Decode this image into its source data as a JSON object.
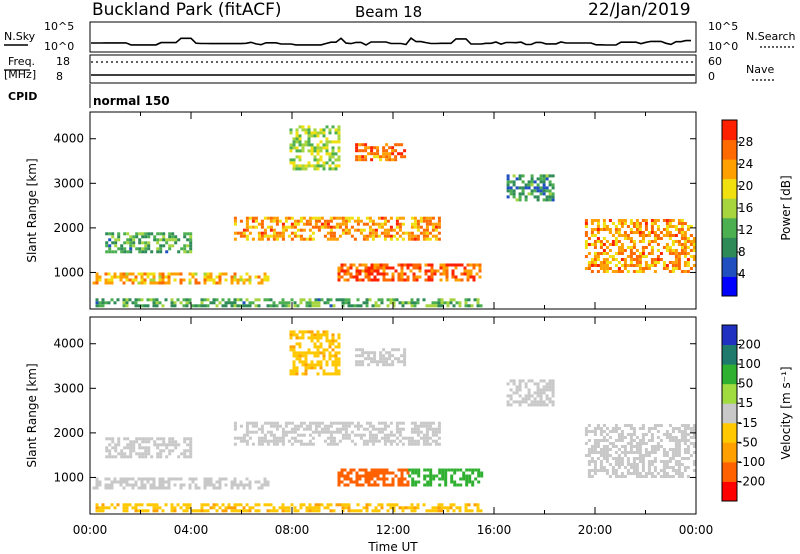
{
  "header": {
    "station": "Buckland Park (fitACF)",
    "beam": "Beam 18",
    "date": "22/Jan/2019"
  },
  "status_panels": {
    "nsky_label": "N.Sky",
    "nsearch_label": "N.Search",
    "noise_ticks": [
      "10^5",
      "10^0"
    ],
    "freq_label_line1": "Freq.",
    "freq_label_line2": "[MHz]",
    "freq_ticks": [
      "18",
      "8"
    ],
    "nave_label": "Nave",
    "nave_ticks": [
      "60",
      "0"
    ],
    "cpid_label": "CPID",
    "cpid_value": "normal 150"
  },
  "colors": {
    "power_scale": [
      "#0000ff",
      "#2050c0",
      "#2e8b57",
      "#4caf50",
      "#a6d53e",
      "#f0e010",
      "#ffa000",
      "#ff6a00",
      "#ff2000"
    ],
    "velocity_scale": [
      "#ff0000",
      "#ff6000",
      "#ffa000",
      "#ffc800",
      "#c8c8c8",
      "#a0dc40",
      "#30b030",
      "#1f7a6e",
      "#2030c0"
    ],
    "ground_scatter": "#c8c8c8"
  },
  "chart_data": [
    {
      "type": "heatmap",
      "title": "Power",
      "xlabel": "Time UT",
      "ylabel": "Slant Range [km]",
      "x_ticks": [
        "00:00",
        "04:00",
        "08:00",
        "12:00",
        "16:00",
        "20:00",
        "00:00"
      ],
      "xlim_hours": [
        0,
        24
      ],
      "ylim": [
        180,
        4600
      ],
      "y_ticks": [
        1000,
        2000,
        3000,
        4000
      ],
      "colorbar": {
        "label": "Power [dB]",
        "min": 0,
        "max": 32,
        "ticks": [
          4,
          8,
          12,
          16,
          20,
          24,
          28
        ]
      },
      "regions": [
        {
          "t0": 0.1,
          "t1": 7.2,
          "r0": 780,
          "r1": 1000,
          "value": 22
        },
        {
          "t0": 0.1,
          "t1": 15.5,
          "r0": 220,
          "r1": 420,
          "value": 12
        },
        {
          "t0": 0.6,
          "t1": 4.0,
          "r0": 1450,
          "r1": 1900,
          "value": 12
        },
        {
          "t0": 5.7,
          "t1": 13.8,
          "r0": 1750,
          "r1": 2250,
          "value": 24
        },
        {
          "t0": 9.8,
          "t1": 15.5,
          "r0": 850,
          "r1": 1200,
          "value": 27
        },
        {
          "t0": 7.9,
          "t1": 9.9,
          "r0": 3300,
          "r1": 4300,
          "value": 16
        },
        {
          "t0": 10.5,
          "t1": 12.5,
          "r0": 3500,
          "r1": 3900,
          "value": 26
        },
        {
          "t0": 16.5,
          "t1": 18.3,
          "r0": 2600,
          "r1": 3200,
          "value": 10
        },
        {
          "t0": 19.6,
          "t1": 23.9,
          "r0": 1050,
          "r1": 2200,
          "value": 24
        }
      ]
    },
    {
      "type": "heatmap",
      "title": "Velocity",
      "xlabel": "Time UT",
      "ylabel": "Slant Range [km]",
      "x_ticks": [
        "00:00",
        "04:00",
        "08:00",
        "12:00",
        "16:00",
        "20:00",
        "00:00"
      ],
      "xlim_hours": [
        0,
        24
      ],
      "ylim": [
        180,
        4600
      ],
      "y_ticks": [
        1000,
        2000,
        3000,
        4000
      ],
      "colorbar": {
        "label": "Velocity [m s⁻¹]",
        "tick_labels": [
          "-200",
          "-100",
          "-50",
          "-15",
          "15",
          "50",
          "100",
          "200"
        ]
      },
      "regions": [
        {
          "t0": 0.1,
          "t1": 7.2,
          "r0": 780,
          "r1": 1000,
          "value": 0
        },
        {
          "t0": 0.1,
          "t1": 15.5,
          "r0": 220,
          "r1": 420,
          "value": -40
        },
        {
          "t0": 0.6,
          "t1": 4.0,
          "r0": 1450,
          "r1": 1900,
          "value": 0
        },
        {
          "t0": 5.7,
          "t1": 13.8,
          "r0": 1750,
          "r1": 2250,
          "value": 0
        },
        {
          "t0": 9.8,
          "t1": 12.6,
          "r0": 850,
          "r1": 1200,
          "value": -150
        },
        {
          "t0": 12.6,
          "t1": 15.5,
          "r0": 850,
          "r1": 1200,
          "value": 80
        },
        {
          "t0": 7.9,
          "t1": 9.9,
          "r0": 3300,
          "r1": 4300,
          "value": -40
        },
        {
          "t0": 10.5,
          "t1": 12.5,
          "r0": 3500,
          "r1": 3900,
          "value": 0
        },
        {
          "t0": 16.5,
          "t1": 18.3,
          "r0": 2600,
          "r1": 3200,
          "value": 0
        },
        {
          "t0": 19.6,
          "t1": 23.9,
          "r0": 1050,
          "r1": 2200,
          "value": 0
        }
      ]
    }
  ]
}
